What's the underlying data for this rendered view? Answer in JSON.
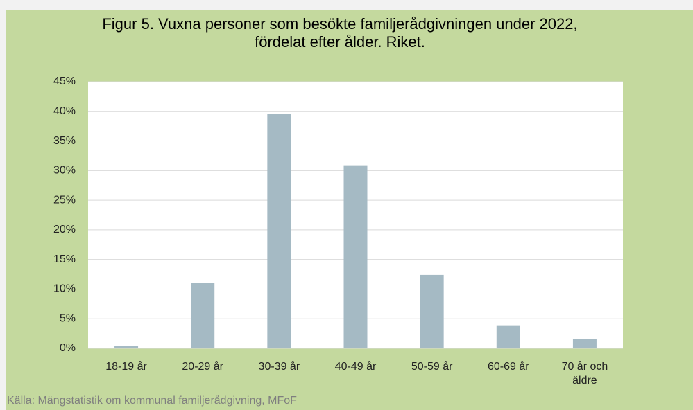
{
  "chart_data": {
    "type": "bar",
    "title": "Figur 5. Vuxna personer som besökte familjerådgivningen under 2022, fördelat efter ålder. Riket.",
    "categories": [
      "18-19 år",
      "20-29 år",
      "30-39 år",
      "40-49 år",
      "50-59 år",
      "60-69 år",
      "70 år och äldre"
    ],
    "values": [
      0.4,
      11.1,
      39.6,
      30.9,
      12.4,
      3.9,
      1.6
    ],
    "color": "#a5bac4",
    "ylim": [
      0,
      45
    ],
    "yticks": [
      {
        "value": 0,
        "label": "0%"
      },
      {
        "value": 5,
        "label": "5%"
      },
      {
        "value": 10,
        "label": "10%"
      },
      {
        "value": 15,
        "label": "15%"
      },
      {
        "value": 20,
        "label": "20%"
      },
      {
        "value": 25,
        "label": "25%"
      },
      {
        "value": 30,
        "label": "30%"
      },
      {
        "value": 35,
        "label": "35%"
      },
      {
        "value": 40,
        "label": "40%"
      },
      {
        "value": 45,
        "label": "45%"
      }
    ],
    "grid": true,
    "source": "Källa: Mängstatistik om kommunal familjerådgivning, MFoF"
  }
}
